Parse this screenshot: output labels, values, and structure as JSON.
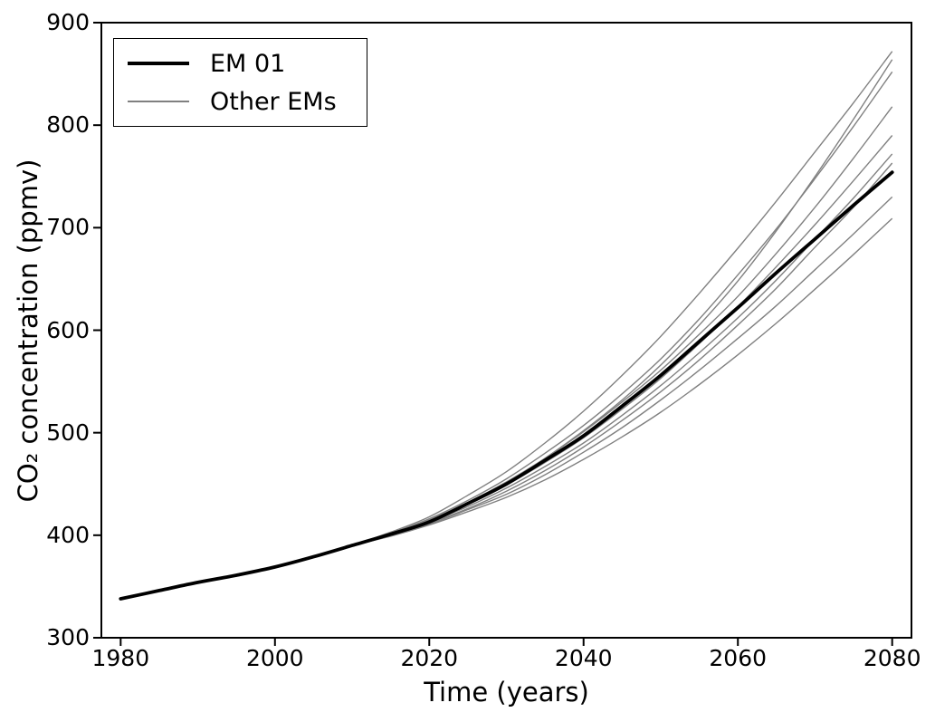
{
  "figure": {
    "legend": {
      "em01_label": "EM 01",
      "other_label": "Other EMs"
    },
    "colors": {
      "em01": "#000000",
      "other": "#808080",
      "axis": "#000000",
      "background": "#ffffff"
    }
  },
  "chart_data": {
    "type": "line",
    "title": "",
    "xlabel": "Time (years)",
    "ylabel": "CO₂ concentration (ppmv)",
    "xlim": [
      1977.5,
      2082.5
    ],
    "ylim": [
      300,
      900
    ],
    "x_ticks": [
      "1980",
      "2000",
      "2020",
      "2040",
      "2060",
      "2080"
    ],
    "x_tick_values": [
      1980,
      2000,
      2020,
      2040,
      2060,
      2080
    ],
    "y_ticks": [
      "300",
      "400",
      "500",
      "600",
      "700",
      "800",
      "900"
    ],
    "y_tick_values": [
      300,
      400,
      500,
      600,
      700,
      800,
      900
    ],
    "grid": false,
    "legend_position": "upper left",
    "x": [
      1980,
      1985,
      1990,
      1995,
      2000,
      2005,
      2010,
      2015,
      2020,
      2025,
      2030,
      2035,
      2040,
      2045,
      2050,
      2055,
      2060,
      2065,
      2070,
      2075,
      2080
    ],
    "series": [
      {
        "name": "EM 01",
        "role": "em01",
        "values": [
          338,
          346,
          354,
          361,
          369,
          379,
          390,
          401,
          413,
          431,
          450,
          473,
          497,
          526,
          556,
          589,
          622,
          656,
          689,
          722,
          754
        ]
      },
      {
        "name": "Other EMs",
        "role": "other",
        "values": [
          338,
          346,
          354,
          361,
          369,
          379,
          390,
          403,
          418,
          439,
          462,
          490,
          521,
          556,
          594,
          636,
          680,
          726,
          774,
          822,
          872
        ]
      },
      {
        "name": "Other EMs",
        "role": "other",
        "values": [
          338,
          346,
          354,
          361,
          369,
          379,
          390,
          401,
          414,
          431,
          451,
          475,
          502,
          532,
          566,
          605,
          648,
          697,
          750,
          806,
          864
        ]
      },
      {
        "name": "Other EMs",
        "role": "other",
        "values": [
          338,
          346,
          354,
          361,
          369,
          379,
          390,
          402,
          416,
          434,
          455,
          480,
          507,
          538,
          572,
          611,
          654,
          699,
          748,
          799,
          852
        ]
      },
      {
        "name": "Other EMs",
        "role": "other",
        "values": [
          338,
          346,
          354,
          361,
          369,
          379,
          390,
          402,
          415,
          432,
          452,
          475,
          501,
          530,
          561,
          596,
          633,
          675,
          720,
          768,
          818
        ]
      },
      {
        "name": "Other EMs",
        "role": "other",
        "values": [
          338,
          346,
          354,
          361,
          369,
          379,
          390,
          401,
          414,
          430,
          449,
          471,
          495,
          523,
          553,
          587,
          623,
          662,
          703,
          746,
          790
        ]
      },
      {
        "name": "Other EMs",
        "role": "other",
        "values": [
          338,
          346,
          354,
          361,
          369,
          379,
          390,
          401,
          413,
          428,
          446,
          467,
          490,
          517,
          546,
          578,
          612,
          649,
          689,
          729,
          772
        ]
      },
      {
        "name": "Other EMs",
        "role": "other",
        "values": [
          338,
          346,
          354,
          361,
          369,
          379,
          390,
          400,
          412,
          426,
          443,
          463,
          486,
          512,
          540,
          571,
          605,
          641,
          681,
          720,
          763
        ]
      },
      {
        "name": "Other EMs",
        "role": "other",
        "values": [
          338,
          346,
          354,
          361,
          369,
          379,
          390,
          400,
          411,
          425,
          440,
          459,
          481,
          505,
          532,
          561,
          592,
          624,
          659,
          694,
          730
        ]
      },
      {
        "name": "Other EMs",
        "role": "other",
        "values": [
          338,
          346,
          354,
          361,
          369,
          379,
          390,
          399,
          410,
          423,
          437,
          454,
          474,
          496,
          520,
          547,
          576,
          607,
          640,
          674,
          709
        ]
      }
    ]
  }
}
